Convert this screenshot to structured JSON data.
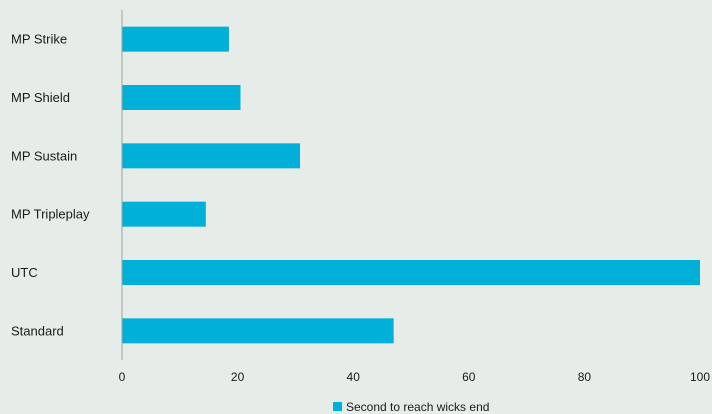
{
  "chart_data": {
    "type": "bar",
    "orientation": "horizontal",
    "categories": [
      "MP Strike",
      "MP Shield",
      "MP Sustain",
      "MP Tripleplay",
      "UTC",
      "Standard"
    ],
    "series": [
      {
        "name": "Second to reach wicks end",
        "values": [
          18.5,
          20.5,
          30.8,
          14.5,
          100,
          47
        ],
        "color": "#00b0d8"
      }
    ],
    "xlim": [
      0,
      100
    ],
    "xticks": [
      0,
      20,
      40,
      60,
      80,
      100
    ],
    "grid": false,
    "legend_position": "bottom"
  },
  "colors": {
    "background": "#e6ede8",
    "bar": "#00b0d8",
    "axis": "#9aa39d"
  }
}
